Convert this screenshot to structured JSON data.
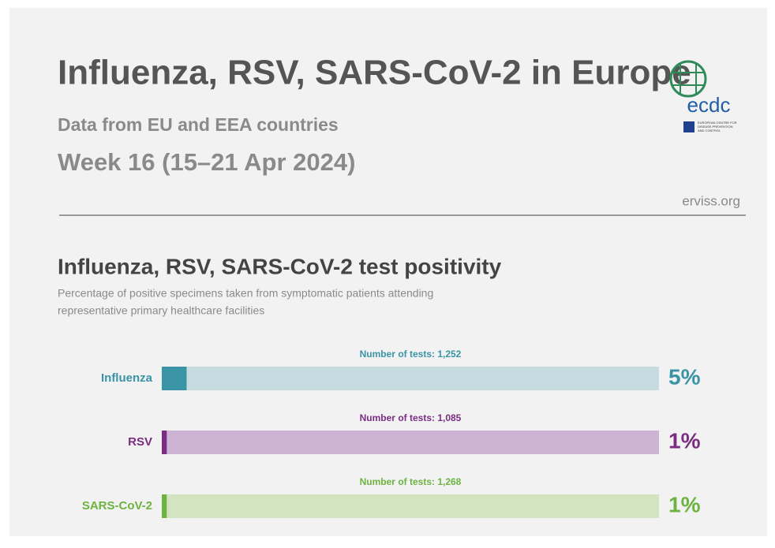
{
  "header": {
    "title": "Influenza, RSV, SARS-CoV-2 in Europe",
    "subtitle": "Data from EU and EEA countries",
    "week": "Week 16 (15–21 Apr 2024)",
    "source": "erviss.org",
    "logo": "ecdc",
    "logo_caption": [
      "EUROPEAN CENTRE FOR",
      "DISEASE PREVENTION",
      "AND CONTROL"
    ]
  },
  "chart_data": {
    "type": "bar",
    "orientation": "horizontal",
    "title": "Influenza, RSV, SARS-CoV-2 test positivity",
    "subtitle": [
      "Percentage of positive specimens taken from symptomatic patients attending",
      "representative primary healthcare facilities"
    ],
    "categories": [
      "Influenza",
      "RSV",
      "SARS-CoV-2"
    ],
    "values": [
      5,
      1,
      1
    ],
    "value_labels": [
      "5%",
      "1%",
      "1%"
    ],
    "annotations": [
      "Number of tests: 1,252",
      "Number of tests: 1,085",
      "Number of tests: 1,268"
    ],
    "colors": [
      "#3a94a6",
      "#7b2d83",
      "#6db33f"
    ],
    "track_colors": [
      "#c6dbe0",
      "#cdb4d4",
      "#d3e5c0"
    ],
    "xlim": [
      0,
      100
    ]
  }
}
